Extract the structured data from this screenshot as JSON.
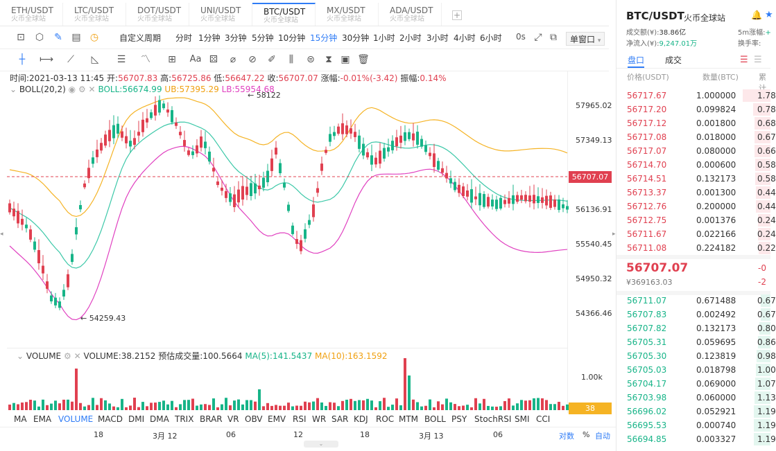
{
  "tabs": [
    {
      "pair": "ETH/USDT",
      "sub": "火币全球站"
    },
    {
      "pair": "LTC/USDT",
      "sub": "火币全球站"
    },
    {
      "pair": "DOT/USDT",
      "sub": "火币全球站"
    },
    {
      "pair": "UNI/USDT",
      "sub": "火币全球站"
    },
    {
      "pair": "BTC/USDT",
      "sub": "火币全球站"
    },
    {
      "pair": "MX/USDT",
      "sub": "火币全球站"
    },
    {
      "pair": "ADA/USDT",
      "sub": "火币全球站"
    }
  ],
  "add_tab": "+",
  "toolbar": {
    "custom_period": "自定义周期",
    "periods": [
      "分时",
      "1分钟",
      "3分钟",
      "5分钟",
      "10分钟",
      "15分钟",
      "30分钟",
      "1小时",
      "2小时",
      "3小时",
      "4小时",
      "6小时"
    ],
    "active_period": "15分钟",
    "countdown": "0s",
    "window_mode": "单窗口"
  },
  "ohlc": {
    "time_label": "时间:",
    "time": "2021-03-13 11:45",
    "open_label": "开:",
    "open": "56707.83",
    "high_label": "高:",
    "high": "56725.86",
    "low_label": "低:",
    "low": "56647.22",
    "close_label": "收:",
    "close": "56707.07",
    "change_label": "涨幅:",
    "change": "-0.01%(-3.42)",
    "amp_label": "振幅:",
    "amp": "0.14%"
  },
  "boll": {
    "name": "BOLL(20,2)",
    "mid": "BOLL:56674.99",
    "ub": "UB:57395.29",
    "lb": "LB:55954.68"
  },
  "price_axis": [
    "57965.02",
    "57349.13",
    "56136.91",
    "55540.45",
    "54950.32",
    "54366.46"
  ],
  "current_price_tag": "56707.07",
  "annotations": {
    "high": "58122",
    "low": "54259.43"
  },
  "volume": {
    "name": "VOLUME",
    "value": "VOLUME:38.2152",
    "est": "预估成交量:100.5664",
    "ma5": "MA(5):141.5437",
    "ma10": "MA(10):163.1592",
    "axis": "1.00k",
    "tag": "38"
  },
  "indicators": [
    "MA",
    "EMA",
    "VOLUME",
    "MACD",
    "DMI",
    "DMA",
    "TRIX",
    "BRAR",
    "VR",
    "OBV",
    "EMV",
    "RSI",
    "WR",
    "SAR",
    "KDJ",
    "ROC",
    "MTM",
    "BOLL",
    "PSY",
    "StochRSI",
    "SMI",
    "CCI"
  ],
  "active_indicator": "VOLUME",
  "time_axis": [
    "18",
    "3月 12",
    "06",
    "12",
    "18",
    "3月 13",
    "06"
  ],
  "bottom_right": {
    "log": "对数",
    "pct": "%",
    "auto": "自动"
  },
  "colors": {
    "up": "#17b488",
    "down": "#e04050",
    "accent": "#2f7cf6",
    "boll_mid": "#3cc8a8",
    "boll_ub": "#f5b324",
    "boll_lb": "#e040c0"
  },
  "right_panel": {
    "pair": "BTC/USDT",
    "exchange": "火币全球站",
    "turnover_label": "成交额(¥):",
    "turnover": "38.86亿",
    "inflow_label": "净流入(¥):",
    "inflow": "9,247.01万",
    "swing_label": "5m涨幅:",
    "swing": "+",
    "turnover_rate_label": "换手率:",
    "tab_book": "盘口",
    "tab_trades": "成交",
    "col_price": "价格(USDT)",
    "col_qty": "数量(BTC)",
    "col_total": "累计",
    "asks": [
      {
        "p": "56717.67",
        "q": "1.000000",
        "t": "1.78"
      },
      {
        "p": "56717.20",
        "q": "0.099824",
        "t": "0.78"
      },
      {
        "p": "56717.12",
        "q": "0.001800",
        "t": "0.68"
      },
      {
        "p": "56717.08",
        "q": "0.018000",
        "t": "0.67"
      },
      {
        "p": "56717.07",
        "q": "0.080000",
        "t": "0.66"
      },
      {
        "p": "56714.70",
        "q": "0.000600",
        "t": "0.58"
      },
      {
        "p": "56714.51",
        "q": "0.132173",
        "t": "0.58"
      },
      {
        "p": "56713.37",
        "q": "0.001300",
        "t": "0.44"
      },
      {
        "p": "56712.76",
        "q": "0.200000",
        "t": "0.44"
      },
      {
        "p": "56712.75",
        "q": "0.001376",
        "t": "0.24"
      },
      {
        "p": "56711.67",
        "q": "0.022166",
        "t": "0.24"
      },
      {
        "p": "56711.08",
        "q": "0.224182",
        "t": "0.22"
      }
    ],
    "last_price": "56707.07",
    "last_cny": "¥369163.03",
    "last_chg1": "-0",
    "last_chg2": "-2",
    "bids": [
      {
        "p": "56711.07",
        "q": "0.671488",
        "t": "0.67"
      },
      {
        "p": "56707.83",
        "q": "0.002492",
        "t": "0.67"
      },
      {
        "p": "56707.82",
        "q": "0.132173",
        "t": "0.80"
      },
      {
        "p": "56705.31",
        "q": "0.059695",
        "t": "0.86"
      },
      {
        "p": "56705.30",
        "q": "0.123819",
        "t": "0.98"
      },
      {
        "p": "56705.03",
        "q": "0.018798",
        "t": "1.00"
      },
      {
        "p": "56704.17",
        "q": "0.069000",
        "t": "1.07"
      },
      {
        "p": "56703.98",
        "q": "0.060000",
        "t": "1.13"
      },
      {
        "p": "56696.02",
        "q": "0.052921",
        "t": "1.19"
      },
      {
        "p": "56695.53",
        "q": "0.000740",
        "t": "1.19"
      },
      {
        "p": "56694.85",
        "q": "0.003327",
        "t": "1.19"
      }
    ]
  }
}
